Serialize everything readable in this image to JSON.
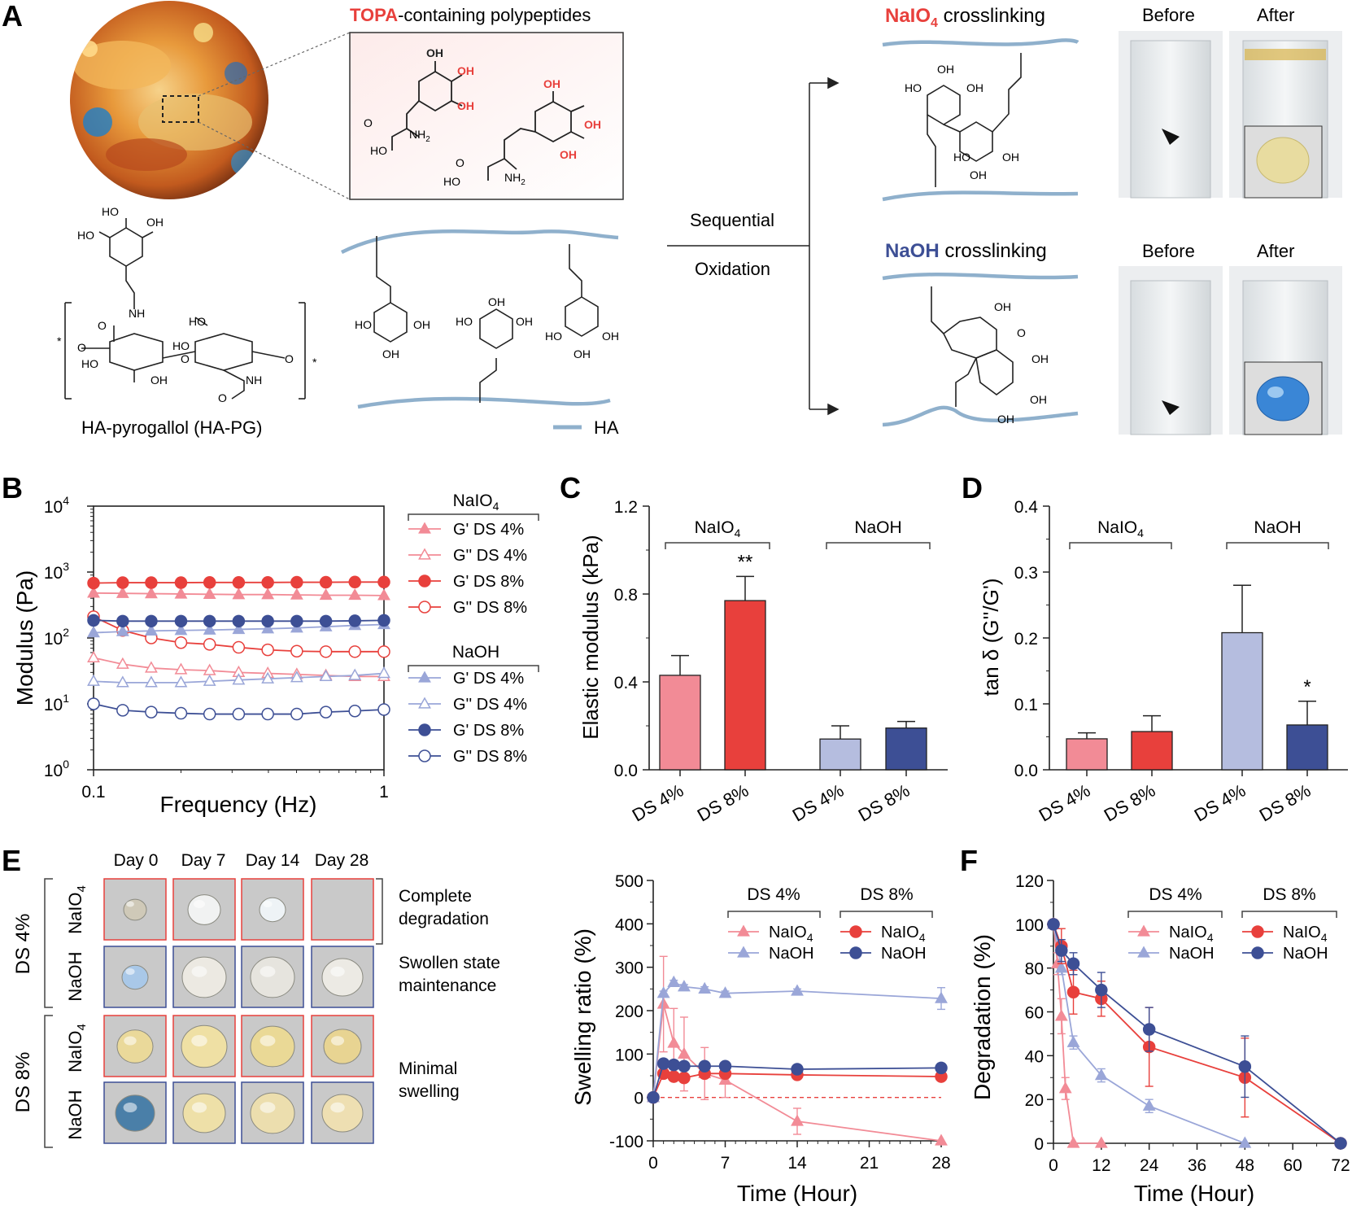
{
  "panel_letters": {
    "a": "A",
    "b": "B",
    "c": "C",
    "d": "D",
    "e": "E",
    "f": "F"
  },
  "panel_a": {
    "topa_word": "TOPA",
    "topa_rest": "-containing polypeptides",
    "oh": "OH",
    "ho": "HO",
    "o": "O",
    "nh": "NH",
    "nh2": "NH",
    "two": "2",
    "star": "*",
    "hapg_label": "HA-pyrogallol (HA-PG)",
    "ha_legend": "HA",
    "sequential": "Sequential",
    "oxidation": "Oxidation",
    "naio4_title_word": "NaIO",
    "naio4_sub": "4",
    "naio4_title_rest": " crosslinking",
    "naoh_title_word": "NaOH",
    "naoh_title_rest": " crosslinking",
    "before": "Before",
    "after": "After"
  },
  "panel_b": {
    "ylabel": "Modulus (Pa)",
    "xlabel": "Frequency (Hz)",
    "yticks": [
      "10",
      "10",
      "10",
      "10",
      "10"
    ],
    "ytick_exp": [
      "0",
      "1",
      "2",
      "3",
      "4"
    ],
    "xticks": [
      "0.1",
      "1"
    ],
    "legend_group1_word": "NaIO",
    "legend_group1_sub": "4",
    "legend_group2": "NaOH",
    "legend_items": [
      {
        "label": "G'  DS 4%",
        "color": "#f28b96",
        "marker": "triangle",
        "filled": true
      },
      {
        "label": "G''  DS 4%",
        "color": "#f28b96",
        "marker": "triangle",
        "filled": false
      },
      {
        "label": "G'  DS 8%",
        "color": "#e8403c",
        "marker": "circle",
        "filled": true
      },
      {
        "label": "G''  DS 8%",
        "color": "#e8403c",
        "marker": "circle",
        "filled": false
      },
      {
        "label": "G'  DS 4%",
        "color": "#9aa6d8",
        "marker": "triangle",
        "filled": true
      },
      {
        "label": "G''  DS 4%",
        "color": "#9aa6d8",
        "marker": "triangle",
        "filled": false
      },
      {
        "label": "G'  DS 8%",
        "color": "#3d4f95",
        "marker": "circle",
        "filled": true
      },
      {
        "label": "G''  DS 8%",
        "color": "#3d4f95",
        "marker": "circle",
        "filled": false
      }
    ]
  },
  "panel_c": {
    "ylabel": "Elastic modulus (kPa)",
    "yticks": [
      "0.0",
      "0.4",
      "0.8",
      "1.2"
    ],
    "group1_word": "NaIO",
    "group1_sub": "4",
    "group2": "NaOH",
    "categories": [
      "DS 4%",
      "DS 8%",
      "DS 4%",
      "DS 8%"
    ],
    "sig": "**"
  },
  "panel_d": {
    "ylabel": "tan δ (G''/G')",
    "yticks": [
      "0.0",
      "0.1",
      "0.2",
      "0.3",
      "0.4"
    ],
    "group1_word": "NaIO",
    "group1_sub": "4",
    "group2": "NaOH",
    "categories": [
      "DS 4%",
      "DS 8%",
      "DS 4%",
      "DS 8%"
    ],
    "sig": "*"
  },
  "panel_e": {
    "days": [
      "Day 0",
      "Day 7",
      "Day 14",
      "Day 28"
    ],
    "ds4": "DS 4%",
    "ds8": "DS 8%",
    "naio4_word": "NaIO",
    "naio4_sub": "4",
    "naoh": "NaOH",
    "note1a": "Complete",
    "note1b": "degradation",
    "note2a": "Swollen state",
    "note2b": "maintenance",
    "note3a": "Minimal",
    "note3b": "swelling",
    "ylabel": "Swelling ratio (%)",
    "xlabel": "Time (Hour)",
    "yticks": [
      "-100",
      "0",
      "100",
      "200",
      "300",
      "400",
      "500"
    ],
    "xticks": [
      "0",
      "7",
      "14",
      "21",
      "28"
    ],
    "leg_ds4": "DS 4%",
    "leg_ds8": "DS 8%",
    "leg_naio4_word": "NaIO",
    "leg_naio4_sub": "4",
    "leg_naoh": "NaOH"
  },
  "panel_f": {
    "ylabel": "Degradation (%)",
    "xlabel": "Time (Hour)",
    "yticks": [
      "0",
      "20",
      "40",
      "60",
      "80",
      "100",
      "120"
    ],
    "xticks": [
      "0",
      "12",
      "24",
      "36",
      "48",
      "60",
      "72"
    ],
    "leg_ds4": "DS 4%",
    "leg_ds8": "DS 8%",
    "leg_naio4_word": "NaIO",
    "leg_naio4_sub": "4",
    "leg_naoh": "NaOH"
  },
  "chart_data": [
    {
      "type": "line",
      "panel": "B",
      "xscale": "log",
      "yscale": "log",
      "xlim": [
        0.1,
        1
      ],
      "ylim": [
        1,
        10000
      ],
      "x": [
        0.1,
        0.126,
        0.158,
        0.2,
        0.251,
        0.316,
        0.398,
        0.501,
        0.631,
        0.794,
        1.0
      ],
      "series": [
        {
          "name": "NaIO4 G' DS 4%",
          "values": [
            480,
            475,
            470,
            465,
            460,
            455,
            455,
            450,
            445,
            445,
            440
          ]
        },
        {
          "name": "NaIO4 G'' DS 4%",
          "values": [
            50,
            40,
            35,
            33,
            32,
            30,
            29,
            28,
            27,
            26,
            26
          ]
        },
        {
          "name": "NaIO4 G' DS 8%",
          "values": [
            680,
            690,
            690,
            690,
            695,
            695,
            695,
            700,
            700,
            705,
            705
          ]
        },
        {
          "name": "NaIO4 G'' DS 8%",
          "values": [
            210,
            130,
            100,
            85,
            80,
            72,
            66,
            63,
            62,
            62,
            62
          ]
        },
        {
          "name": "NaOH G' DS 4%",
          "values": [
            120,
            125,
            128,
            130,
            132,
            135,
            138,
            142,
            148,
            155,
            160
          ]
        },
        {
          "name": "NaOH G'' DS 4%",
          "values": [
            22,
            21,
            21,
            21,
            22,
            23,
            24,
            25,
            26,
            27,
            29
          ]
        },
        {
          "name": "NaOH G' DS 8%",
          "values": [
            185,
            180,
            180,
            180,
            180,
            180,
            180,
            180,
            180,
            182,
            185
          ]
        },
        {
          "name": "NaOH G'' DS 8%",
          "values": [
            10,
            8,
            7.5,
            7.2,
            7,
            7,
            7,
            7,
            7.5,
            7.8,
            8.2
          ]
        }
      ]
    },
    {
      "type": "bar",
      "panel": "C",
      "ylim": [
        0,
        1.2
      ],
      "categories": [
        "DS 4%",
        "DS 8%",
        "DS 4%",
        "DS 8%"
      ],
      "groups": [
        "NaIO4",
        "NaIO4",
        "NaOH",
        "NaOH"
      ],
      "values": [
        0.43,
        0.77,
        0.14,
        0.19
      ],
      "errors": [
        0.09,
        0.11,
        0.06,
        0.03
      ],
      "colors": [
        "#f28b96",
        "#e8403c",
        "#b5bddf",
        "#3d4f95"
      ],
      "annotation": "** over NaIO4 DS 8%"
    },
    {
      "type": "bar",
      "panel": "D",
      "ylim": [
        0,
        0.4
      ],
      "categories": [
        "DS 4%",
        "DS 8%",
        "DS 4%",
        "DS 8%"
      ],
      "groups": [
        "NaIO4",
        "NaIO4",
        "NaOH",
        "NaOH"
      ],
      "values": [
        0.047,
        0.058,
        0.208,
        0.068
      ],
      "errors": [
        0.009,
        0.024,
        0.072,
        0.036
      ],
      "colors": [
        "#f28b96",
        "#e8403c",
        "#b5bddf",
        "#3d4f95"
      ],
      "annotation": "* over NaOH DS 8%"
    },
    {
      "type": "line",
      "panel": "E",
      "xlim": [
        0,
        28
      ],
      "ylim": [
        -100,
        500
      ],
      "series": [
        {
          "name": "DS 4% NaIO4",
          "x": [
            0,
            1,
            2,
            3,
            5,
            7,
            14,
            28
          ],
          "values": [
            0,
            215,
            125,
            100,
            55,
            40,
            -55,
            -100
          ],
          "errors": [
            0,
            110,
            80,
            85,
            60,
            40,
            30,
            0
          ]
        },
        {
          "name": "DS 4% NaOH",
          "x": [
            0,
            1,
            2,
            3,
            5,
            7,
            14,
            28
          ],
          "values": [
            0,
            240,
            265,
            255,
            250,
            240,
            245,
            228
          ],
          "errors": [
            0,
            5,
            5,
            5,
            5,
            5,
            5,
            25
          ]
        },
        {
          "name": "DS 8% NaIO4",
          "x": [
            0,
            1,
            2,
            3,
            5,
            7,
            14,
            28
          ],
          "values": [
            0,
            55,
            48,
            45,
            55,
            55,
            52,
            48
          ],
          "errors": [
            0,
            10,
            10,
            10,
            10,
            8,
            8,
            8
          ]
        },
        {
          "name": "DS 8% NaOH",
          "x": [
            0,
            1,
            2,
            3,
            5,
            7,
            14,
            28
          ],
          "values": [
            0,
            78,
            75,
            72,
            72,
            72,
            65,
            68
          ],
          "errors": [
            0,
            8,
            8,
            8,
            8,
            8,
            8,
            10
          ]
        }
      ]
    },
    {
      "type": "line",
      "panel": "F",
      "xlim": [
        0,
        72
      ],
      "ylim": [
        0,
        120
      ],
      "series": [
        {
          "name": "DS 4% NaIO4",
          "x": [
            0,
            1,
            2,
            3,
            5,
            12
          ],
          "values": [
            100,
            82,
            58,
            25,
            0,
            0
          ],
          "errors": [
            0,
            5,
            8,
            5,
            0,
            0
          ]
        },
        {
          "name": "DS 4% NaOH",
          "x": [
            0,
            2,
            5,
            12,
            24,
            48
          ],
          "values": [
            100,
            80,
            46,
            31,
            17,
            0
          ],
          "errors": [
            0,
            3,
            3,
            3,
            3,
            0
          ]
        },
        {
          "name": "DS 8% NaIO4",
          "x": [
            0,
            2,
            5,
            12,
            24,
            48,
            72
          ],
          "values": [
            100,
            90,
            69,
            66,
            44,
            30,
            0
          ],
          "errors": [
            0,
            8,
            10,
            8,
            18,
            18,
            0
          ]
        },
        {
          "name": "DS 8% NaOH",
          "x": [
            0,
            2,
            5,
            12,
            24,
            48,
            72
          ],
          "values": [
            100,
            88,
            82,
            70,
            52,
            35,
            0
          ],
          "errors": [
            0,
            5,
            5,
            8,
            10,
            14,
            0
          ]
        }
      ]
    }
  ]
}
